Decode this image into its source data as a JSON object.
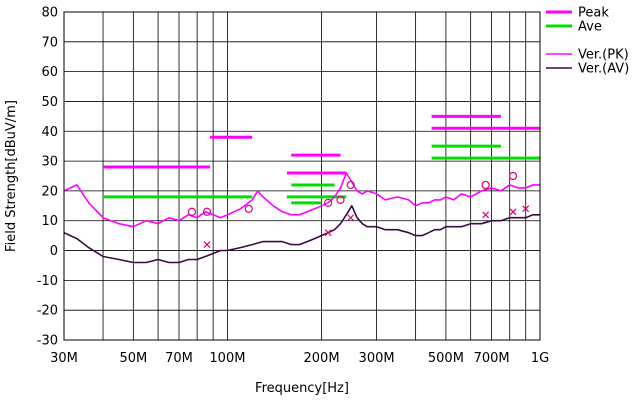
{
  "chart_data": {
    "type": "line",
    "xlabel": "Frequency[Hz]",
    "ylabel": "Field Strength[dBuV/m]",
    "x_scale": "log",
    "xlim": [
      30000000,
      1000000000
    ],
    "ylim": [
      -30,
      80
    ],
    "grid": true,
    "legend_position": "top-right",
    "x_ticks": [
      {
        "label": "30M",
        "value": 30000000
      },
      {
        "label": "50M",
        "value": 50000000
      },
      {
        "label": "70M",
        "value": 70000000
      },
      {
        "label": "100M",
        "value": 100000000
      },
      {
        "label": "200M",
        "value": 200000000
      },
      {
        "label": "300M",
        "value": 300000000
      },
      {
        "label": "500M",
        "value": 500000000
      },
      {
        "label": "700M",
        "value": 700000000
      },
      {
        "label": "1G",
        "value": 1000000000
      }
    ],
    "x_grid_values": [
      30000000,
      40000000,
      50000000,
      60000000,
      70000000,
      80000000,
      90000000,
      100000000,
      200000000,
      300000000,
      400000000,
      500000000,
      600000000,
      700000000,
      800000000,
      900000000,
      1000000000
    ],
    "y_ticks": [
      {
        "label": "80",
        "value": 80
      },
      {
        "label": "70",
        "value": 70
      },
      {
        "label": "60",
        "value": 60
      },
      {
        "label": "50",
        "value": 50
      },
      {
        "label": "40",
        "value": 40
      },
      {
        "label": "30",
        "value": 30
      },
      {
        "label": "20",
        "value": 20
      },
      {
        "label": "10",
        "value": 10
      },
      {
        "label": "0",
        "value": 0
      },
      {
        "label": "-10",
        "value": -10
      },
      {
        "label": "-20",
        "value": -20
      },
      {
        "label": "-30",
        "value": -30
      }
    ],
    "legend": [
      {
        "name": "Peak",
        "color": "#ff00ff",
        "style": "thick"
      },
      {
        "name": "Ave",
        "color": "#00e000",
        "style": "thick"
      },
      {
        "name": "Ver.(PK)",
        "color": "#ff00ff",
        "style": "thin"
      },
      {
        "name": "Ver.(AV)",
        "color": "#3c0a46",
        "style": "thin"
      }
    ],
    "limit_lines": [
      {
        "name": "Peak",
        "color": "#ff00ff",
        "segments": [
          {
            "x1": 40000000,
            "x2": 88000000,
            "y": 28
          },
          {
            "x1": 88000000,
            "x2": 120000000,
            "y": 38
          },
          {
            "x1": 160000000,
            "x2": 230000000,
            "y": 32
          },
          {
            "x1": 155000000,
            "x2": 240000000,
            "y": 26
          },
          {
            "x1": 450000000,
            "x2": 750000000,
            "y": 45
          },
          {
            "x1": 450000000,
            "x2": 1000000000,
            "y": 41
          }
        ]
      },
      {
        "name": "Ave",
        "color": "#00e000",
        "segments": [
          {
            "x1": 40000000,
            "x2": 120000000,
            "y": 18
          },
          {
            "x1": 160000000,
            "x2": 220000000,
            "y": 22
          },
          {
            "x1": 155000000,
            "x2": 240000000,
            "y": 18
          },
          {
            "x1": 160000000,
            "x2": 200000000,
            "y": 16
          },
          {
            "x1": 450000000,
            "x2": 750000000,
            "y": 35
          },
          {
            "x1": 450000000,
            "x2": 1000000000,
            "y": 31
          }
        ]
      }
    ],
    "series": [
      {
        "name": "Ver.(PK)",
        "color": "#ff00ff",
        "x": [
          30000000,
          33000000,
          36000000,
          40000000,
          45000000,
          50000000,
          55000000,
          60000000,
          65000000,
          70000000,
          75000000,
          80000000,
          85000000,
          90000000,
          95000000,
          100000000,
          110000000,
          120000000,
          125000000,
          130000000,
          140000000,
          150000000,
          160000000,
          170000000,
          180000000,
          190000000,
          200000000,
          210000000,
          220000000,
          230000000,
          240000000,
          250000000,
          260000000,
          270000000,
          280000000,
          300000000,
          320000000,
          350000000,
          380000000,
          400000000,
          420000000,
          440000000,
          460000000,
          480000000,
          500000000,
          530000000,
          560000000,
          600000000,
          650000000,
          700000000,
          750000000,
          800000000,
          850000000,
          900000000,
          950000000,
          1000000000
        ],
        "y": [
          20,
          22,
          16,
          11,
          9,
          8,
          10,
          9,
          11,
          10,
          12,
          11,
          13,
          12,
          11,
          12,
          14,
          17,
          20,
          18,
          15,
          13,
          12,
          12,
          13,
          14,
          15,
          16,
          18,
          21,
          26,
          23,
          20,
          19,
          20,
          19,
          17,
          18,
          17,
          15,
          16,
          16,
          17,
          17,
          18,
          17,
          19,
          18,
          20,
          21,
          20,
          22,
          21,
          21,
          22,
          22
        ]
      },
      {
        "name": "Ver.(AV)",
        "color": "#3c0a46",
        "x": [
          30000000,
          33000000,
          36000000,
          40000000,
          45000000,
          50000000,
          55000000,
          60000000,
          65000000,
          70000000,
          75000000,
          80000000,
          85000000,
          90000000,
          95000000,
          100000000,
          110000000,
          120000000,
          130000000,
          140000000,
          150000000,
          160000000,
          170000000,
          180000000,
          190000000,
          200000000,
          210000000,
          220000000,
          230000000,
          240000000,
          250000000,
          260000000,
          270000000,
          280000000,
          300000000,
          320000000,
          350000000,
          380000000,
          400000000,
          420000000,
          440000000,
          460000000,
          480000000,
          500000000,
          530000000,
          560000000,
          600000000,
          650000000,
          700000000,
          750000000,
          800000000,
          850000000,
          900000000,
          950000000,
          1000000000
        ],
        "y": [
          6,
          4,
          1,
          -2,
          -3,
          -4,
          -4,
          -3,
          -4,
          -4,
          -3,
          -3,
          -2,
          -1,
          0,
          0,
          1,
          2,
          3,
          3,
          3,
          2,
          2,
          3,
          4,
          5,
          6,
          7,
          9,
          12,
          15,
          11,
          9,
          8,
          8,
          7,
          7,
          6,
          5,
          5,
          6,
          7,
          7,
          8,
          8,
          8,
          9,
          9,
          10,
          10,
          11,
          11,
          11,
          12,
          12
        ]
      }
    ],
    "markers": [
      {
        "series": "Ver.(PK)",
        "shape": "circle",
        "color": "#e0007a",
        "points": [
          {
            "x": 77000000,
            "y": 13
          },
          {
            "x": 86000000,
            "y": 13
          },
          {
            "x": 117000000,
            "y": 14
          },
          {
            "x": 210000000,
            "y": 16
          },
          {
            "x": 230000000,
            "y": 17
          },
          {
            "x": 248000000,
            "y": 22
          },
          {
            "x": 670000000,
            "y": 22
          },
          {
            "x": 820000000,
            "y": 25
          }
        ]
      },
      {
        "series": "Ver.(AV)",
        "shape": "x",
        "color": "#e0007a",
        "points": [
          {
            "x": 86000000,
            "y": 2
          },
          {
            "x": 210000000,
            "y": 6
          },
          {
            "x": 248000000,
            "y": 11
          },
          {
            "x": 670000000,
            "y": 12
          },
          {
            "x": 820000000,
            "y": 13
          },
          {
            "x": 900000000,
            "y": 14
          }
        ]
      }
    ]
  }
}
